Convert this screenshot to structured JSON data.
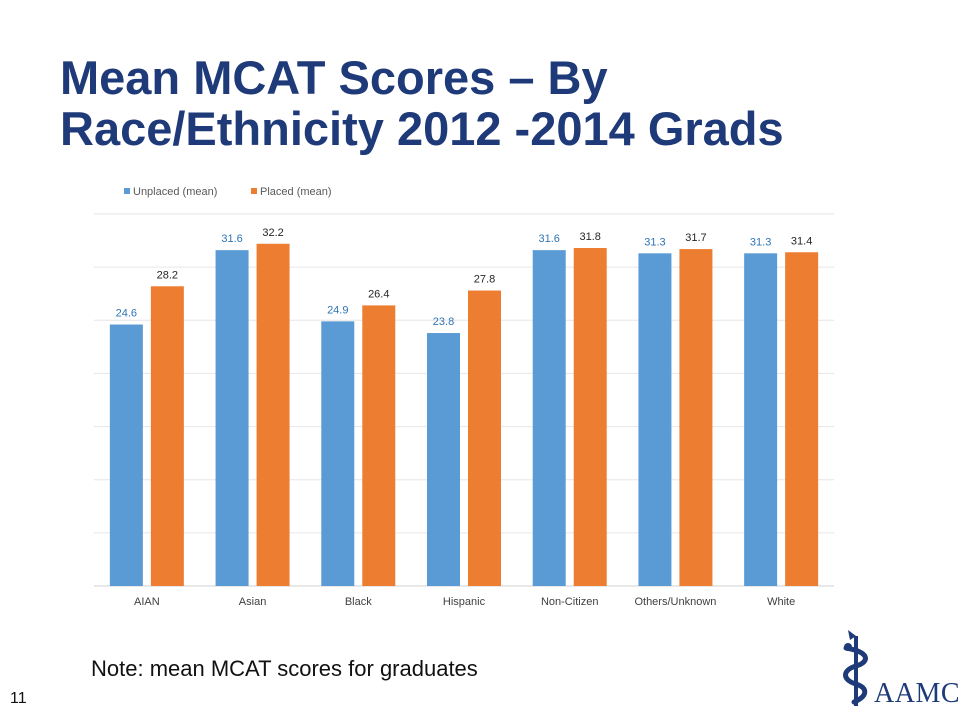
{
  "slide": {
    "title_line1": "Mean MCAT Scores – By",
    "title_line2": "Race/Ethnicity 2012 -2014 Grads",
    "note": "Note: mean MCAT scores for graduates",
    "page_number": "11",
    "logo_text": "AAMC",
    "logo_icon": "caduceus-icon"
  },
  "colors": {
    "title": "#1f3a78",
    "unplaced": "#5b9bd5",
    "placed": "#ed7d31",
    "unplaced_label": "#2e75b6",
    "placed_label": "#262626",
    "grid": "#e6e6e6"
  },
  "chart_data": {
    "type": "bar",
    "categories": [
      "AIAN",
      "Asian",
      "Black",
      "Hispanic",
      "Non-Citizen",
      "Others/Unknown",
      "White"
    ],
    "series": [
      {
        "name": "Unplaced (mean)",
        "values": [
          24.6,
          31.6,
          24.9,
          23.8,
          31.6,
          31.3,
          31.3
        ]
      },
      {
        "name": "Placed (mean)",
        "values": [
          28.2,
          32.2,
          26.4,
          27.8,
          31.8,
          31.7,
          31.4
        ]
      }
    ],
    "ylim": [
      0,
      35
    ],
    "grid": true,
    "legend": "top-left",
    "data_labels": true
  }
}
